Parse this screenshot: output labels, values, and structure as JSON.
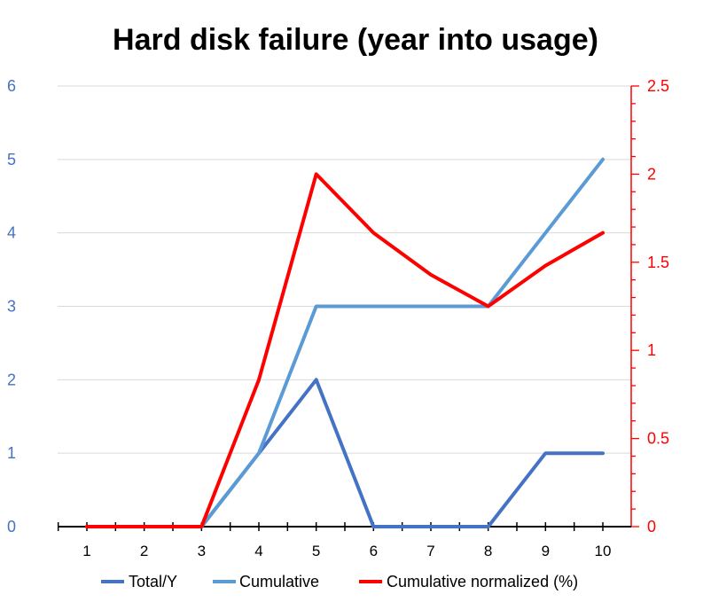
{
  "chart_data": {
    "type": "line",
    "title": "Hard disk failure (year into usage)",
    "x": [
      1,
      2,
      3,
      4,
      5,
      6,
      7,
      8,
      9,
      10
    ],
    "y_left": {
      "min": 0,
      "max": 6,
      "step": 1,
      "ticks": [
        "0",
        "1",
        "2",
        "3",
        "4",
        "5",
        "6"
      ],
      "color": "#4472C4"
    },
    "y_right": {
      "min": 0,
      "max": 2.5,
      "step": 0.5,
      "ticks": [
        "0",
        "0.5",
        "1",
        "1.5",
        "2",
        "2.5"
      ],
      "color": "#FF0000"
    },
    "grid": true,
    "legend_position": "bottom",
    "series": [
      {
        "name": "Total/Y",
        "axis": "left",
        "color": "#4472C4",
        "values": [
          0,
          0,
          0,
          1,
          2,
          0,
          0,
          0,
          1,
          1
        ]
      },
      {
        "name": "Cumulative",
        "axis": "left",
        "color": "#5B9BD5",
        "values": [
          0,
          0,
          0,
          1,
          3,
          3,
          3,
          3,
          4,
          5
        ]
      },
      {
        "name": "Cumulative normalized (%)",
        "axis": "right",
        "color": "#FF0000",
        "values": [
          0,
          0,
          0,
          0.833,
          2.0,
          1.667,
          1.429,
          1.25,
          1.481,
          1.667
        ]
      }
    ]
  }
}
